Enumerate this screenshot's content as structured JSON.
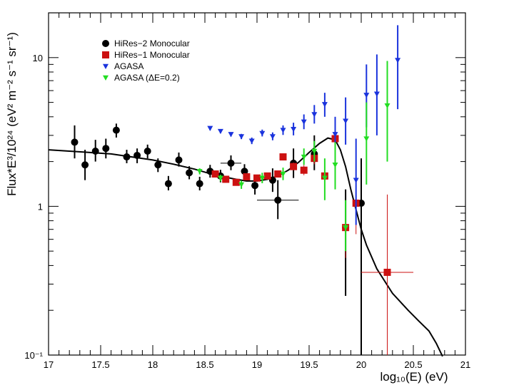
{
  "chart_data": {
    "type": "scatter",
    "xlabel": "log₁₀(E) (eV)",
    "ylabel": "Flux*E³/10²⁴ (eV² m⁻² s⁻¹ sr⁻¹)",
    "xlim": [
      17,
      21
    ],
    "ylim": [
      0.1,
      20
    ],
    "y_scale": "log",
    "legend_position": "top-left",
    "x_ticks": [
      {
        "value": 17,
        "label": "17"
      },
      {
        "value": 17.5,
        "label": "17.5"
      },
      {
        "value": 18,
        "label": "18"
      },
      {
        "value": 18.5,
        "label": "18.5"
      },
      {
        "value": 19,
        "label": "19"
      },
      {
        "value": 19.5,
        "label": "19.5"
      },
      {
        "value": 20,
        "label": "20"
      },
      {
        "value": 20.5,
        "label": "20.5"
      },
      {
        "value": 21,
        "label": "21"
      }
    ],
    "y_ticks": [
      {
        "value": 0.1,
        "label": "10⁻¹"
      },
      {
        "value": 1,
        "label": "1"
      },
      {
        "value": 10,
        "label": "10"
      }
    ],
    "series": [
      {
        "name": "HiRes−2 Monocular",
        "marker": "circle",
        "color": "#000000",
        "points": [
          {
            "x": 17.25,
            "y": 2.7,
            "ylo": 2.1,
            "yhi": 3.5
          },
          {
            "x": 17.35,
            "y": 1.9,
            "ylo": 1.5,
            "yhi": 2.4
          },
          {
            "x": 17.45,
            "y": 2.35,
            "ylo": 2.0,
            "yhi": 2.8
          },
          {
            "x": 17.55,
            "y": 2.45,
            "ylo": 2.1,
            "yhi": 2.85
          },
          {
            "x": 17.65,
            "y": 3.25,
            "ylo": 2.9,
            "yhi": 3.6
          },
          {
            "x": 17.75,
            "y": 2.15,
            "ylo": 1.95,
            "yhi": 2.4
          },
          {
            "x": 17.85,
            "y": 2.2,
            "ylo": 1.95,
            "yhi": 2.45
          },
          {
            "x": 17.95,
            "y": 2.35,
            "ylo": 2.1,
            "yhi": 2.6
          },
          {
            "x": 18.05,
            "y": 1.9,
            "ylo": 1.7,
            "yhi": 2.1
          },
          {
            "x": 18.15,
            "y": 1.42,
            "ylo": 1.28,
            "yhi": 1.6
          },
          {
            "x": 18.25,
            "y": 2.05,
            "ylo": 1.85,
            "yhi": 2.3
          },
          {
            "x": 18.35,
            "y": 1.68,
            "ylo": 1.52,
            "yhi": 1.86
          },
          {
            "x": 18.45,
            "y": 1.42,
            "ylo": 1.28,
            "yhi": 1.58
          },
          {
            "x": 18.55,
            "y": 1.72,
            "ylo": 1.56,
            "yhi": 1.9
          },
          {
            "x": 18.65,
            "y": 1.6,
            "ylo": 1.45,
            "yhi": 1.76
          },
          {
            "x": 18.75,
            "y": 1.95,
            "ylo": 1.75,
            "yhi": 2.2,
            "xlo": 18.65,
            "xhi": 18.85
          },
          {
            "x": 18.88,
            "y": 1.72,
            "ylo": 1.55,
            "yhi": 1.92
          },
          {
            "x": 18.98,
            "y": 1.38,
            "ylo": 1.2,
            "yhi": 1.6
          },
          {
            "x": 19.15,
            "y": 1.5,
            "ylo": 1.25,
            "yhi": 1.8
          },
          {
            "x": 19.2,
            "y": 1.1,
            "ylo": 0.82,
            "yhi": 1.5,
            "xlo": 19.0,
            "xhi": 19.4
          },
          {
            "x": 19.35,
            "y": 1.95,
            "ylo": 1.55,
            "yhi": 2.45
          },
          {
            "x": 19.55,
            "y": 2.25,
            "ylo": 1.75,
            "yhi": 3.0
          },
          {
            "x": 19.85,
            "y": 0.72,
            "ylo": 0.25,
            "yhi": 1.3
          },
          {
            "x": 20.0,
            "y": 1.05,
            "ylo": 0.08,
            "yhi": 2.1
          }
        ]
      },
      {
        "name": "HiRes−1 Monocular",
        "marker": "square",
        "color": "#cc1111",
        "points": [
          {
            "x": 18.6,
            "y": 1.65,
            "ylo": 1.6,
            "yhi": 1.7
          },
          {
            "x": 18.7,
            "y": 1.52,
            "ylo": 1.48,
            "yhi": 1.56
          },
          {
            "x": 18.8,
            "y": 1.45,
            "ylo": 1.41,
            "yhi": 1.5
          },
          {
            "x": 18.9,
            "y": 1.58,
            "ylo": 1.53,
            "yhi": 1.63
          },
          {
            "x": 19.0,
            "y": 1.55,
            "ylo": 1.5,
            "yhi": 1.61
          },
          {
            "x": 19.1,
            "y": 1.6,
            "ylo": 1.54,
            "yhi": 1.67
          },
          {
            "x": 19.2,
            "y": 1.65,
            "ylo": 1.58,
            "yhi": 1.73
          },
          {
            "x": 19.25,
            "y": 2.15,
            "ylo": 2.05,
            "yhi": 2.27
          },
          {
            "x": 19.35,
            "y": 1.85,
            "ylo": 1.75,
            "yhi": 1.97
          },
          {
            "x": 19.45,
            "y": 1.75,
            "ylo": 1.62,
            "yhi": 1.9
          },
          {
            "x": 19.55,
            "y": 2.1,
            "ylo": 1.92,
            "yhi": 2.32
          },
          {
            "x": 19.65,
            "y": 1.6,
            "ylo": 1.38,
            "yhi": 1.88
          },
          {
            "x": 19.75,
            "y": 2.85,
            "ylo": 2.5,
            "yhi": 3.25
          },
          {
            "x": 19.85,
            "y": 0.72,
            "ylo": 0.45,
            "yhi": 1.1
          },
          {
            "x": 19.95,
            "y": 1.05,
            "ylo": 0.65,
            "yhi": 1.6
          },
          {
            "x": 20.25,
            "y": 0.36,
            "ylo": 0.08,
            "yhi": 1.2,
            "xlo": 20.0,
            "xhi": 20.5
          }
        ]
      },
      {
        "name": "AGASA",
        "marker": "triangle-down",
        "color": "#1a33dd",
        "points": [
          {
            "x": 18.55,
            "y": 3.35,
            "ylo": 3.25,
            "yhi": 3.45
          },
          {
            "x": 18.65,
            "y": 3.2,
            "ylo": 3.1,
            "yhi": 3.3
          },
          {
            "x": 18.75,
            "y": 3.05,
            "ylo": 2.95,
            "yhi": 3.15
          },
          {
            "x": 18.85,
            "y": 2.95,
            "ylo": 2.83,
            "yhi": 3.07
          },
          {
            "x": 18.95,
            "y": 2.75,
            "ylo": 2.62,
            "yhi": 2.9
          },
          {
            "x": 19.05,
            "y": 3.1,
            "ylo": 2.95,
            "yhi": 3.28
          },
          {
            "x": 19.15,
            "y": 2.95,
            "ylo": 2.78,
            "yhi": 3.14
          },
          {
            "x": 19.25,
            "y": 3.25,
            "ylo": 3.02,
            "yhi": 3.5
          },
          {
            "x": 19.35,
            "y": 3.3,
            "ylo": 3.0,
            "yhi": 3.65
          },
          {
            "x": 19.45,
            "y": 3.7,
            "ylo": 3.3,
            "yhi": 4.15
          },
          {
            "x": 19.55,
            "y": 4.15,
            "ylo": 3.6,
            "yhi": 4.8
          },
          {
            "x": 19.65,
            "y": 4.85,
            "ylo": 4.0,
            "yhi": 5.8
          },
          {
            "x": 19.75,
            "y": 3.05,
            "ylo": 2.3,
            "yhi": 4.0
          },
          {
            "x": 19.85,
            "y": 3.75,
            "ylo": 2.6,
            "yhi": 5.4
          },
          {
            "x": 19.95,
            "y": 1.5,
            "ylo": 0.75,
            "yhi": 2.85
          },
          {
            "x": 20.05,
            "y": 5.6,
            "ylo": 3.4,
            "yhi": 9.0
          },
          {
            "x": 20.15,
            "y": 5.7,
            "ylo": 3.0,
            "yhi": 10.5
          },
          {
            "x": 20.35,
            "y": 9.6,
            "ylo": 4.5,
            "yhi": 16.5
          }
        ]
      },
      {
        "name": "AGASA (ΔE=0.2)",
        "marker": "triangle-down",
        "color": "#22dd22",
        "points": [
          {
            "x": 18.45,
            "y": 1.72,
            "ylo": 1.64,
            "yhi": 1.8
          },
          {
            "x": 18.65,
            "y": 1.55,
            "ylo": 1.47,
            "yhi": 1.63
          },
          {
            "x": 18.85,
            "y": 1.4,
            "ylo": 1.31,
            "yhi": 1.49
          },
          {
            "x": 19.05,
            "y": 1.55,
            "ylo": 1.43,
            "yhi": 1.68
          },
          {
            "x": 19.25,
            "y": 1.65,
            "ylo": 1.5,
            "yhi": 1.82
          },
          {
            "x": 19.45,
            "y": 2.15,
            "ylo": 1.9,
            "yhi": 2.45
          },
          {
            "x": 19.55,
            "y": 2.35,
            "ylo": 2.0,
            "yhi": 2.75
          },
          {
            "x": 19.65,
            "y": 1.55,
            "ylo": 1.1,
            "yhi": 2.1
          },
          {
            "x": 19.75,
            "y": 1.9,
            "ylo": 1.3,
            "yhi": 2.7
          },
          {
            "x": 19.85,
            "y": 0.72,
            "ylo": 0.5,
            "yhi": 1.1
          },
          {
            "x": 20.05,
            "y": 2.85,
            "ylo": 1.4,
            "yhi": 5.0
          },
          {
            "x": 20.25,
            "y": 4.75,
            "ylo": 2.0,
            "yhi": 9.5
          }
        ]
      }
    ],
    "model_curve": [
      {
        "x": 17.0,
        "y": 2.4
      },
      {
        "x": 17.2,
        "y": 2.35
      },
      {
        "x": 17.4,
        "y": 2.3
      },
      {
        "x": 17.6,
        "y": 2.25
      },
      {
        "x": 17.8,
        "y": 2.15
      },
      {
        "x": 18.0,
        "y": 2.05
      },
      {
        "x": 18.2,
        "y": 1.92
      },
      {
        "x": 18.4,
        "y": 1.78
      },
      {
        "x": 18.6,
        "y": 1.62
      },
      {
        "x": 18.8,
        "y": 1.52
      },
      {
        "x": 18.9,
        "y": 1.48
      },
      {
        "x": 19.0,
        "y": 1.48
      },
      {
        "x": 19.1,
        "y": 1.52
      },
      {
        "x": 19.2,
        "y": 1.6
      },
      {
        "x": 19.3,
        "y": 1.75
      },
      {
        "x": 19.4,
        "y": 1.98
      },
      {
        "x": 19.5,
        "y": 2.3
      },
      {
        "x": 19.6,
        "y": 2.65
      },
      {
        "x": 19.68,
        "y": 2.88
      },
      {
        "x": 19.75,
        "y": 2.8
      },
      {
        "x": 19.8,
        "y": 2.4
      },
      {
        "x": 19.85,
        "y": 1.85
      },
      {
        "x": 19.9,
        "y": 1.3
      },
      {
        "x": 19.95,
        "y": 0.95
      },
      {
        "x": 20.0,
        "y": 0.7
      },
      {
        "x": 20.05,
        "y": 0.55
      },
      {
        "x": 20.15,
        "y": 0.38
      },
      {
        "x": 20.3,
        "y": 0.26
      },
      {
        "x": 20.45,
        "y": 0.2
      },
      {
        "x": 20.55,
        "y": 0.17
      },
      {
        "x": 20.65,
        "y": 0.145
      },
      {
        "x": 20.72,
        "y": 0.12
      },
      {
        "x": 20.78,
        "y": 0.098
      }
    ]
  }
}
